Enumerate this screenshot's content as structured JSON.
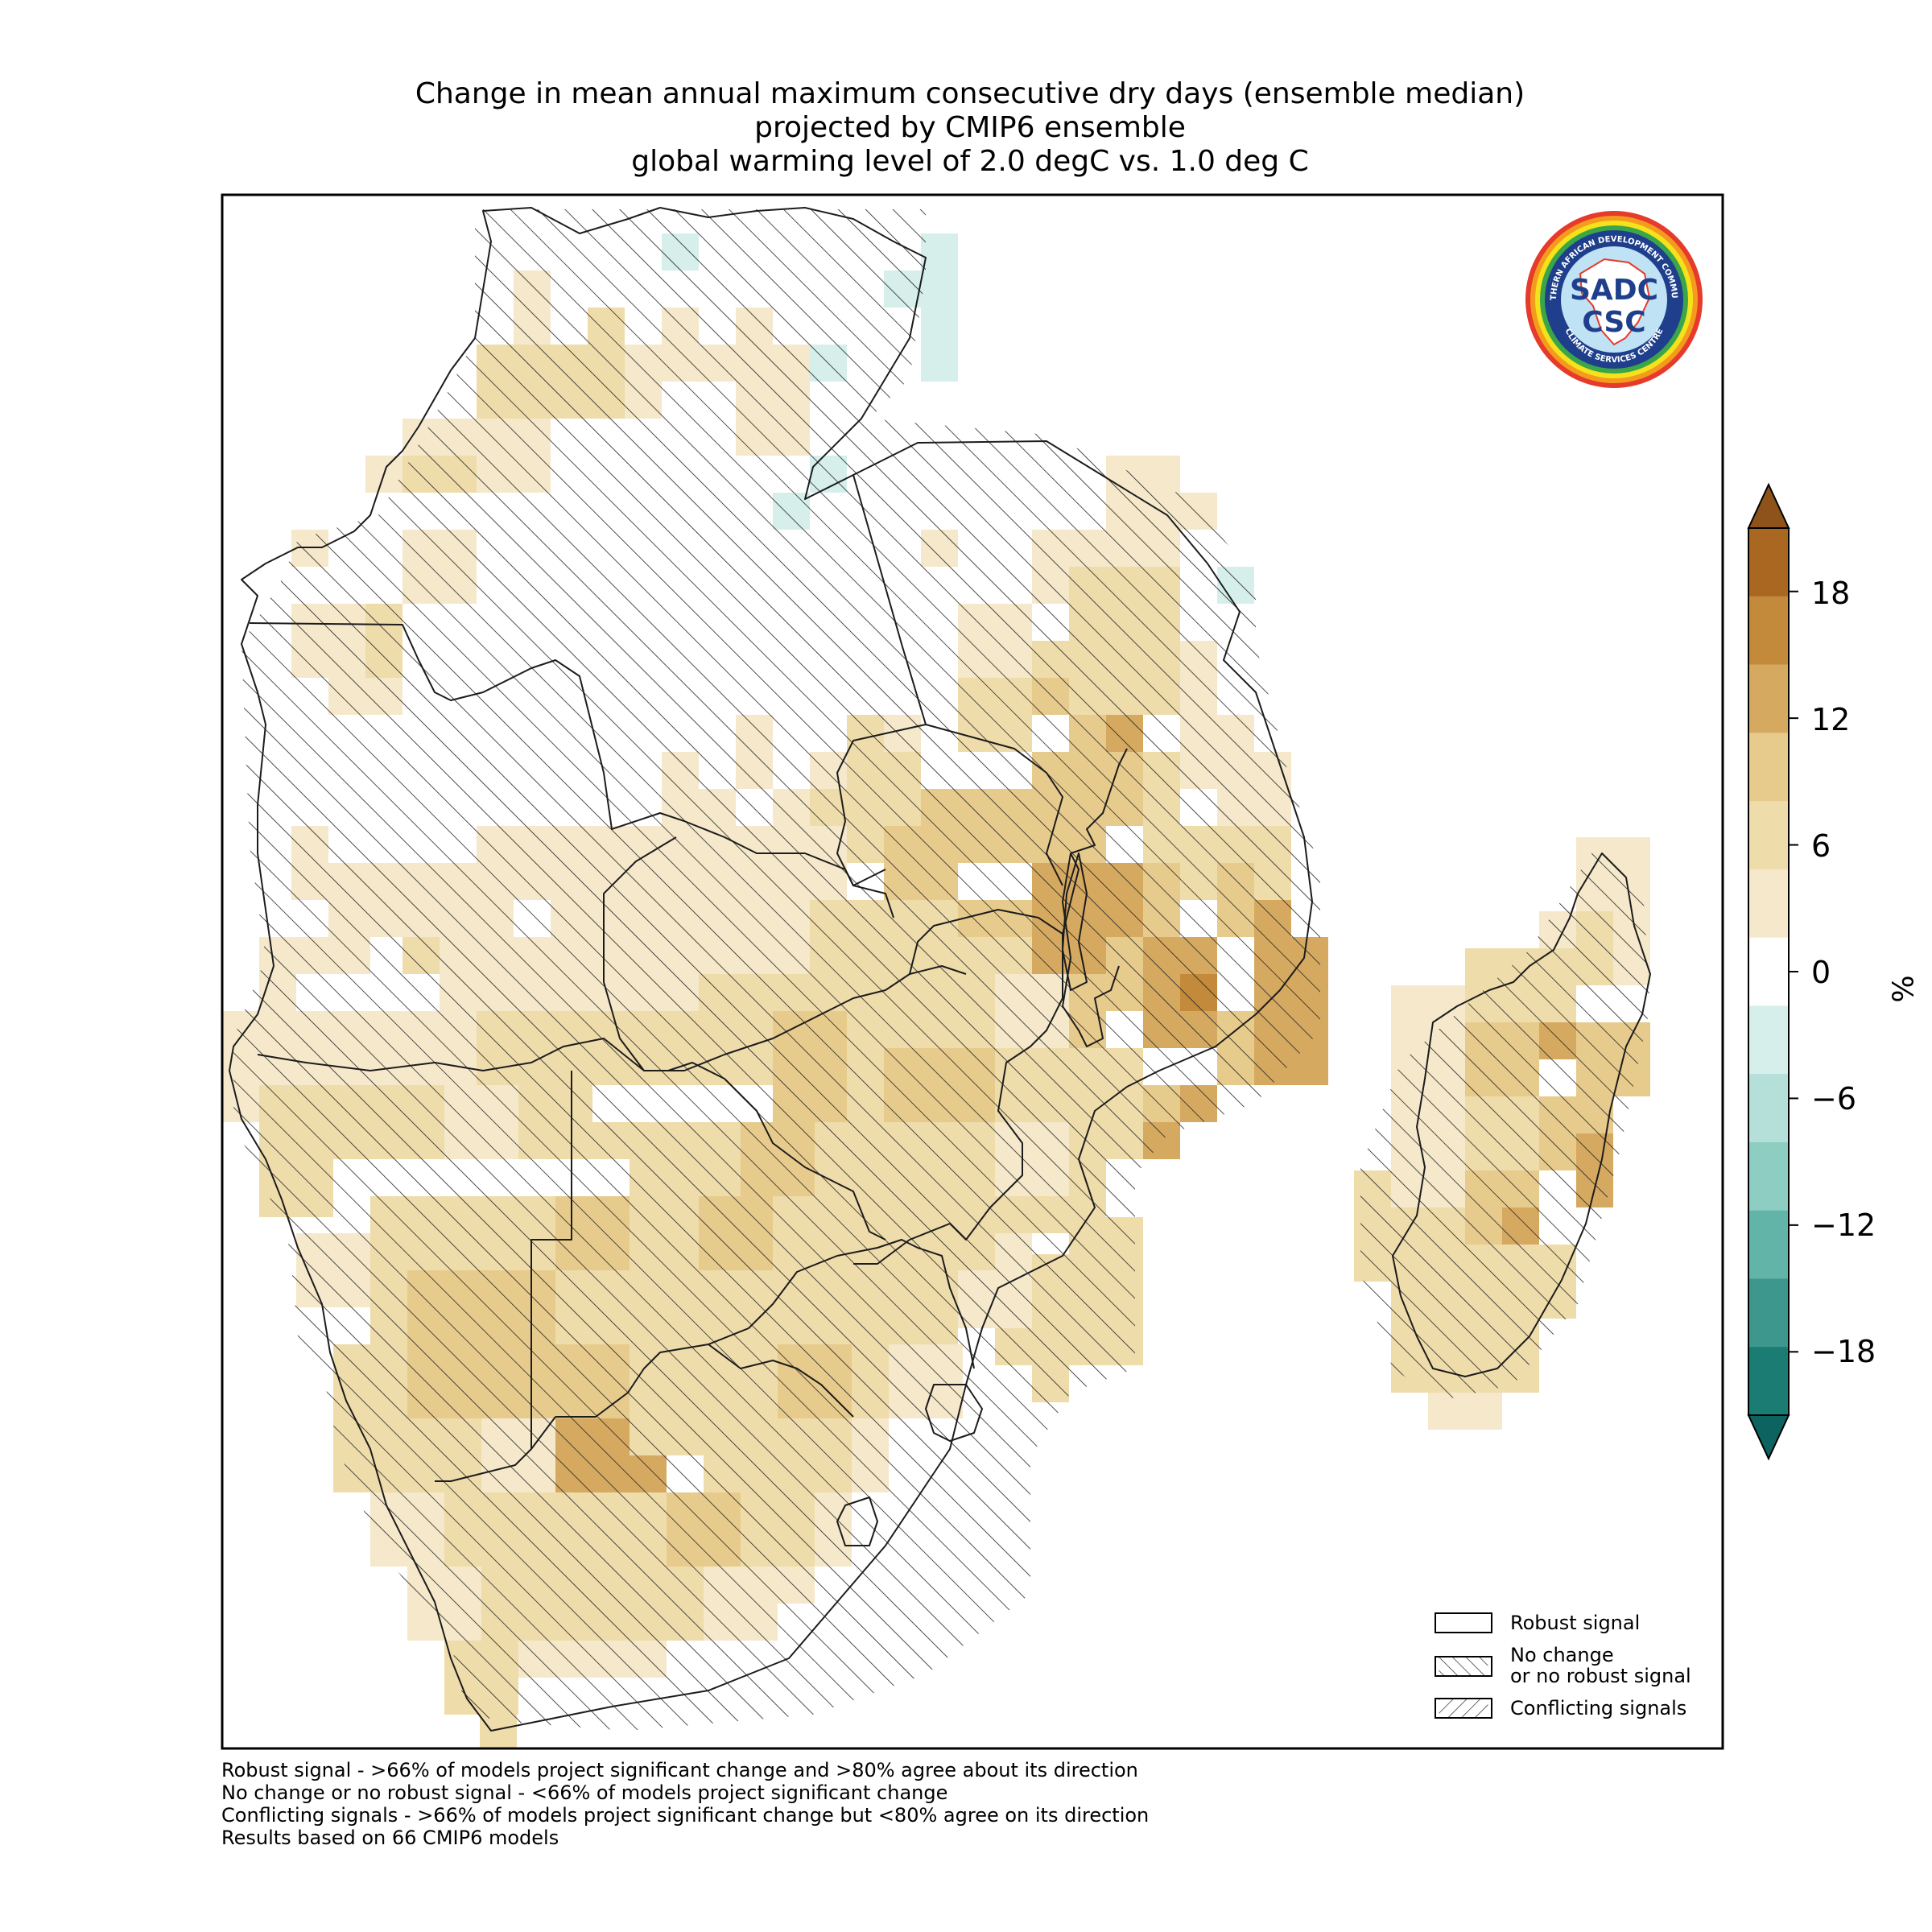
{
  "title": {
    "line1": "Change in mean annual maximum consecutive dry days (ensemble median)",
    "line2": "projected by CMIP6 ensemble",
    "line3": "global warming level of 2.0 degC vs. 1.0 deg C"
  },
  "colorbar": {
    "unit": "%",
    "ticks": [
      "18",
      "12",
      "6",
      "0",
      "−6",
      "−12",
      "−18"
    ],
    "tick_values": [
      18,
      12,
      6,
      0,
      -6,
      -12,
      -18
    ],
    "range": [
      -21,
      21
    ],
    "bin_colors": [
      "#1a7c73",
      "#3d978d",
      "#62b3a8",
      "#8dcdc2",
      "#b5e0d9",
      "#d6efeb",
      "#ffffff",
      "#f5e8cb",
      "#efdcab",
      "#e7cb8c",
      "#d6a961",
      "#c28a3a",
      "#a96722"
    ],
    "over_color": "#8e531a",
    "under_color": "#0d6360"
  },
  "legend": {
    "robust": "Robust signal",
    "no_change": "No change\nor no robust signal",
    "conflicting": "Conflicting signals"
  },
  "footnotes": {
    "line1": "Robust signal - >66% of models project significant change and >80% agree about its direction",
    "line2": "No change or no robust signal - <66% of models project significant change",
    "line3": "Conflicting signals - >66% of models project significant change but <80% agree on its direction",
    "line4": "Results based on 66 CMIP6 models"
  },
  "logo": {
    "top_text": "SOUTHERN AFRICAN DEVELOPMENT COMMUNITY",
    "bottom_text": "CLIMATE SERVICES CENTRE",
    "center_top": "SADC",
    "center_bottom": "CSC"
  }
}
